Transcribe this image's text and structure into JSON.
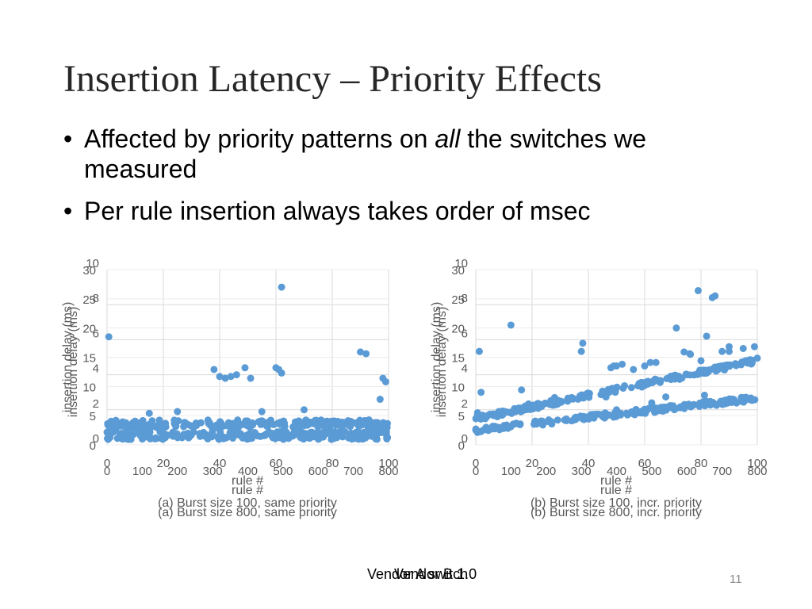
{
  "slide": {
    "title": "Insertion Latency – Priority Effects",
    "bullet1_pre": "Affected by priority patterns on ",
    "bullet1_em": "all",
    "bullet1_post": " the switches we measured",
    "bullet2": "Per rule insertion always takes order of msec",
    "bullet_char": "•",
    "vendor_a": "Vendor A switch",
    "vendor_b": "Vendor B 1.0",
    "page_number": "11"
  },
  "colors": {
    "marker": "#5b9bd5",
    "grid": "#d9d9d9",
    "axis_text": "#595959"
  },
  "chart_data": [
    {
      "id": "left",
      "type": "scatter",
      "layers": [
        {
          "title": "(a) Burst size 800, same priority",
          "xlabel": "rule #",
          "ylabel": "insertion delay (ms)",
          "xlim": [
            0,
            800
          ],
          "ylim": [
            0,
            30
          ],
          "xticks": [
            0,
            100,
            200,
            300,
            400,
            500,
            600,
            700,
            800
          ],
          "yticks": [
            0,
            5,
            10,
            15,
            20,
            25,
            30
          ],
          "baseline": 1.6,
          "points": [
            [
              5,
              18.5
            ],
            [
              15,
              2.9
            ],
            [
              25,
              2.5
            ],
            [
              40,
              3.2
            ],
            [
              55,
              2.5
            ],
            [
              70,
              2.9
            ],
            [
              80,
              3.0
            ],
            [
              90,
              3.0
            ],
            [
              100,
              3.2
            ],
            [
              120,
              3.1
            ],
            [
              140,
              3.0
            ],
            [
              160,
              2.0
            ],
            [
              220,
              1.8
            ],
            [
              230,
              2.0
            ],
            [
              300,
              2.5
            ],
            [
              330,
              3.2
            ],
            [
              340,
              3.3
            ],
            [
              360,
              2.4
            ],
            [
              380,
              1.9
            ],
            [
              420,
              2.1
            ],
            [
              460,
              2.2
            ],
            [
              500,
              2.4
            ],
            [
              560,
              2.0
            ],
            [
              600,
              2.2
            ],
            [
              650,
              2.0
            ],
            [
              700,
              1.8
            ],
            [
              760,
              2.6
            ],
            [
              780,
              2.1
            ]
          ]
        },
        {
          "title": "(a) Burst size 100, same priority",
          "xlabel": "rule #",
          "ylabel": "insertion delay (ms)",
          "xlim": [
            0,
            100
          ],
          "ylim": [
            0,
            10
          ],
          "xticks": [
            0,
            20,
            40,
            60,
            80,
            100
          ],
          "yticks": [
            0,
            2,
            4,
            6,
            8,
            10
          ],
          "baseline": 1.2,
          "points": [
            [
              38,
              4.3
            ],
            [
              40,
              3.9
            ],
            [
              42,
              3.8
            ],
            [
              44,
              3.9
            ],
            [
              46,
              4.0
            ],
            [
              49,
              4.4
            ],
            [
              51,
              3.8
            ],
            [
              60,
              4.4
            ],
            [
              61,
              4.3
            ],
            [
              62,
              9.0
            ],
            [
              62,
              4.1
            ],
            [
              70,
              2.0
            ],
            [
              90,
              5.3
            ],
            [
              92,
              5.2
            ],
            [
              97,
              2.6
            ],
            [
              98,
              3.8
            ],
            [
              99,
              3.6
            ],
            [
              55,
              1.9
            ],
            [
              25,
              1.9
            ],
            [
              15,
              1.8
            ]
          ]
        }
      ]
    },
    {
      "id": "right",
      "type": "scatter",
      "layers": [
        {
          "title": "(b) Burst size 800, incr. priority",
          "xlabel": "rule #",
          "ylabel": "insertion delay (ms)",
          "xlim": [
            0,
            800
          ],
          "ylim": [
            0,
            30
          ],
          "xticks": [
            0,
            100,
            200,
            300,
            400,
            500,
            600,
            700,
            800
          ],
          "yticks": [
            0,
            5,
            10,
            15,
            20,
            25,
            30
          ],
          "trend_start": 2.5,
          "trend_end": 8.0,
          "points": [
            [
              5,
              5.5
            ],
            [
              10,
              16
            ],
            [
              15,
              9.0
            ],
            [
              100,
              20.5
            ],
            [
              130,
              9.4
            ],
            [
              150,
              7.0
            ],
            [
              300,
              16
            ],
            [
              370,
              8.2
            ],
            [
              400,
              6.0
            ],
            [
              450,
              5.5
            ],
            [
              480,
              6.1
            ],
            [
              500,
              7.2
            ],
            [
              540,
              8.2
            ],
            [
              570,
              20
            ],
            [
              600,
              12.0
            ],
            [
              610,
              15.5
            ],
            [
              650,
              8.5
            ],
            [
              700,
              16
            ],
            [
              720,
              16
            ]
          ]
        },
        {
          "title": "(b) Burst size 100, incr. priority",
          "xlabel": "rule #",
          "ylabel": "insertion delay (ms)",
          "xlim": [
            0,
            100
          ],
          "ylim": [
            0,
            10
          ],
          "xticks": [
            0,
            20,
            40,
            60,
            80,
            100
          ],
          "yticks": [
            0,
            2,
            4,
            6,
            8,
            10
          ],
          "trend_start": 1.5,
          "trend_end": 4.8,
          "points": [
            [
              28,
              2.7
            ],
            [
              38,
              5.8
            ],
            [
              48,
              4.4
            ],
            [
              49,
              4.5
            ],
            [
              50,
              4.5
            ],
            [
              52,
              4.6
            ],
            [
              56,
              4.3
            ],
            [
              58,
              3.5
            ],
            [
              60,
              4.5
            ],
            [
              62,
              4.7
            ],
            [
              64,
              4.7
            ],
            [
              74,
              5.3
            ],
            [
              76,
              5.2
            ],
            [
              79,
              8.8
            ],
            [
              80,
              4.8
            ],
            [
              82,
              6.2
            ],
            [
              84,
              8.4
            ],
            [
              85,
              8.5
            ],
            [
              90,
              5.6
            ],
            [
              95,
              5.5
            ],
            [
              99,
              5.6
            ]
          ]
        }
      ]
    }
  ]
}
